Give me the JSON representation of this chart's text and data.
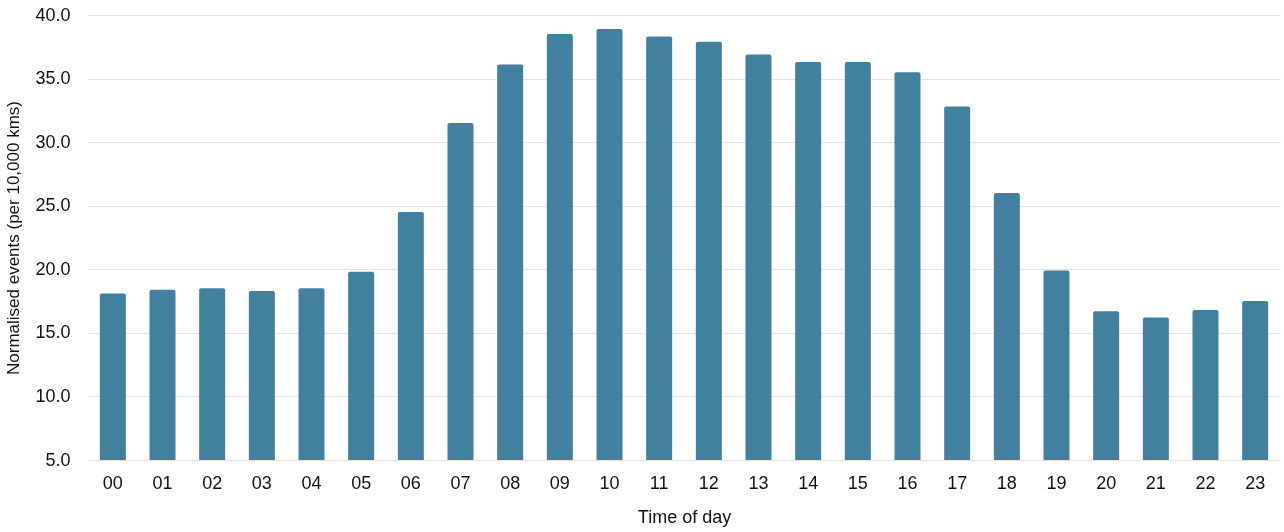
{
  "chart_data": {
    "type": "bar",
    "xlabel": "Time of day",
    "ylabel": "Normalised events (per 10,000 kms)",
    "categories": [
      "00",
      "01",
      "02",
      "03",
      "04",
      "05",
      "06",
      "07",
      "08",
      "09",
      "10",
      "11",
      "12",
      "13",
      "14",
      "15",
      "16",
      "17",
      "18",
      "19",
      "20",
      "21",
      "22",
      "23"
    ],
    "values": [
      18.1,
      18.4,
      18.5,
      18.3,
      18.5,
      19.8,
      24.5,
      31.5,
      36.1,
      38.5,
      38.9,
      38.3,
      37.9,
      36.9,
      36.3,
      36.3,
      35.5,
      32.8,
      26.0,
      19.9,
      16.7,
      16.2,
      16.8,
      17.5
    ],
    "color": "#41809e",
    "ylim": [
      5,
      40
    ],
    "yticks": [
      {
        "value": 5,
        "label": "5.0"
      },
      {
        "value": 10,
        "label": "10.0"
      },
      {
        "value": 15,
        "label": "15.0"
      },
      {
        "value": 20,
        "label": "20.0"
      },
      {
        "value": 25,
        "label": "25.0"
      },
      {
        "value": 30,
        "label": "30.0"
      },
      {
        "value": 35,
        "label": "35.0"
      },
      {
        "value": 40,
        "label": "40.0"
      }
    ],
    "grid": true
  }
}
